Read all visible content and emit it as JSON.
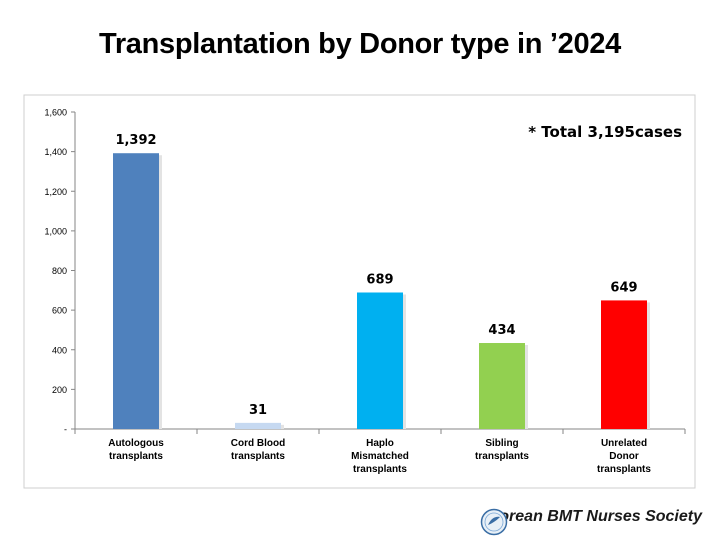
{
  "title": "Transplantation by Donor type in ’2024",
  "footer": {
    "org": "Korean BMT Nurses Society",
    "logo_icon": "society-logo-icon"
  },
  "chart_data": {
    "type": "bar",
    "categories": [
      [
        "Autologous",
        "transplants"
      ],
      [
        "Cord Blood",
        "transplants"
      ],
      [
        "Haplo",
        "Mismatched",
        "transplants"
      ],
      [
        "Sibling",
        "transplants"
      ],
      [
        "Unrelated",
        "Donor",
        "transplants"
      ]
    ],
    "values": [
      1392,
      31,
      689,
      434,
      649
    ],
    "value_labels": [
      "1,392",
      "31",
      "689",
      "434",
      "649"
    ],
    "colors": [
      "#4f81bd",
      "#c6d9f1",
      "#00b0f0",
      "#92d050",
      "#ff0000"
    ],
    "ylim": [
      0,
      1600
    ],
    "yticks": [
      0,
      200,
      400,
      600,
      800,
      1000,
      1200,
      1400,
      1600
    ],
    "ytick_labels": [
      "-",
      "200",
      "400",
      "600",
      "800",
      "1,000",
      "1,200",
      "1,400",
      "1,600"
    ],
    "annotation": "* Total 3,195cases",
    "grid": false
  }
}
